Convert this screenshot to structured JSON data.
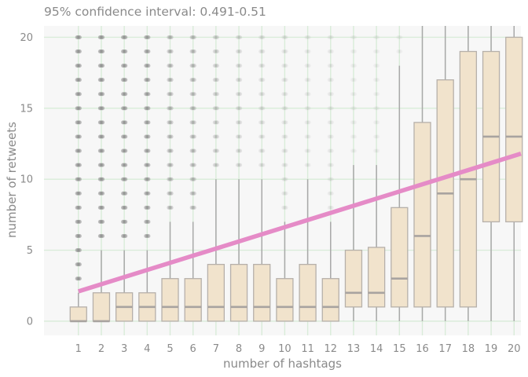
{
  "chart_data": {
    "type": "box",
    "title": "95% confidence interval: 0.491-0.51",
    "xlabel": "number of hashtags",
    "ylabel": "number of retweets",
    "xlim": [
      -0.5,
      20.3
    ],
    "ylim": [
      -1,
      20.8
    ],
    "x_ticks": [
      1,
      2,
      3,
      4,
      5,
      6,
      7,
      8,
      9,
      10,
      11,
      12,
      13,
      14,
      15,
      16,
      17,
      18,
      19,
      20
    ],
    "y_ticks": [
      0,
      5,
      10,
      15,
      20
    ],
    "grid": true,
    "colors": {
      "panel_bg": "#f7f7f7",
      "grid": "#d9ecd9",
      "box_fill": "#f1e3cc",
      "box_stroke": "#b6b0aa",
      "median": "#a8a3a0",
      "whisker": "#a8a8a8",
      "outlier": "#888888",
      "trend": "#e58bc7"
    },
    "boxes": [
      {
        "x": 1,
        "q1": 0,
        "median": 0,
        "q3": 1,
        "whisker_low": 0,
        "whisker_high": 2,
        "outliers_from": 3,
        "outlier_opacity": 0.95
      },
      {
        "x": 2,
        "q1": 0,
        "median": 0,
        "q3": 2,
        "whisker_low": 0,
        "whisker_high": 5,
        "outliers_from": 6,
        "outlier_opacity": 0.95
      },
      {
        "x": 3,
        "q1": 0,
        "median": 1,
        "q3": 2,
        "whisker_low": 0,
        "whisker_high": 5,
        "outliers_from": 6,
        "outlier_opacity": 0.9
      },
      {
        "x": 4,
        "q1": 0,
        "median": 1,
        "q3": 2,
        "whisker_low": 0,
        "whisker_high": 5,
        "outliers_from": 6,
        "outlier_opacity": 0.85
      },
      {
        "x": 5,
        "q1": 0,
        "median": 1,
        "q3": 3,
        "whisker_low": 0,
        "whisker_high": 7,
        "outliers_from": 8,
        "outlier_opacity": 0.6
      },
      {
        "x": 6,
        "q1": 0,
        "median": 1,
        "q3": 3,
        "whisker_low": 0,
        "whisker_high": 7,
        "outliers_from": 8,
        "outlier_opacity": 0.55
      },
      {
        "x": 7,
        "q1": 0,
        "median": 1,
        "q3": 4,
        "whisker_low": 0,
        "whisker_high": 10,
        "outliers_from": 11,
        "outlier_opacity": 0.4
      },
      {
        "x": 8,
        "q1": 0,
        "median": 1,
        "q3": 4,
        "whisker_low": 0,
        "whisker_high": 10,
        "outliers_from": 11,
        "outlier_opacity": 0.3
      },
      {
        "x": 9,
        "q1": 0,
        "median": 1,
        "q3": 4,
        "whisker_low": 0,
        "whisker_high": 10,
        "outliers_from": 11,
        "outlier_opacity": 0.25
      },
      {
        "x": 10,
        "q1": 0,
        "median": 1,
        "q3": 3,
        "whisker_low": 0,
        "whisker_high": 7,
        "outliers_from": 8,
        "outlier_opacity": 0.2
      },
      {
        "x": 11,
        "q1": 0,
        "median": 1,
        "q3": 4,
        "whisker_low": 0,
        "whisker_high": 10,
        "outliers_from": 11,
        "outlier_opacity": 0.15
      },
      {
        "x": 12,
        "q1": 0,
        "median": 1,
        "q3": 3,
        "whisker_low": 0,
        "whisker_high": 7,
        "outliers_from": 8,
        "outlier_opacity": 0.15
      },
      {
        "x": 13,
        "q1": 1,
        "median": 2,
        "q3": 5,
        "whisker_low": 0,
        "whisker_high": 11,
        "outliers_from": 12,
        "outlier_opacity": 0.1
      },
      {
        "x": 14,
        "q1": 1,
        "median": 2,
        "q3": 5.2,
        "whisker_low": 0,
        "whisker_high": 11,
        "outliers_from": 12,
        "outlier_opacity": 0.1
      },
      {
        "x": 15,
        "q1": 1,
        "median": 3,
        "q3": 8,
        "whisker_low": 0,
        "whisker_high": 18,
        "outliers_from": 19,
        "outlier_opacity": 0.1
      },
      {
        "x": 16,
        "q1": 1,
        "median": 6,
        "q3": 14,
        "whisker_low": 0,
        "whisker_high": 20.8,
        "outliers_from": null,
        "outlier_opacity": 0
      },
      {
        "x": 17,
        "q1": 1,
        "median": 9,
        "q3": 17,
        "whisker_low": 0,
        "whisker_high": 20.8,
        "outliers_from": null,
        "outlier_opacity": 0
      },
      {
        "x": 18,
        "q1": 1,
        "median": 10,
        "q3": 19,
        "whisker_low": 0,
        "whisker_high": 20.8,
        "outliers_from": null,
        "outlier_opacity": 0
      },
      {
        "x": 19,
        "q1": 7,
        "median": 13,
        "q3": 19,
        "whisker_low": 0,
        "whisker_high": 20.8,
        "outliers_from": null,
        "outlier_opacity": 0
      },
      {
        "x": 20,
        "q1": 7,
        "median": 13,
        "q3": 20,
        "whisker_low": 0,
        "whisker_high": 20.8,
        "outliers_from": null,
        "outlier_opacity": 0
      }
    ],
    "trend_line": {
      "x": [
        1,
        20.3
      ],
      "y": [
        2.1,
        11.8
      ]
    }
  }
}
